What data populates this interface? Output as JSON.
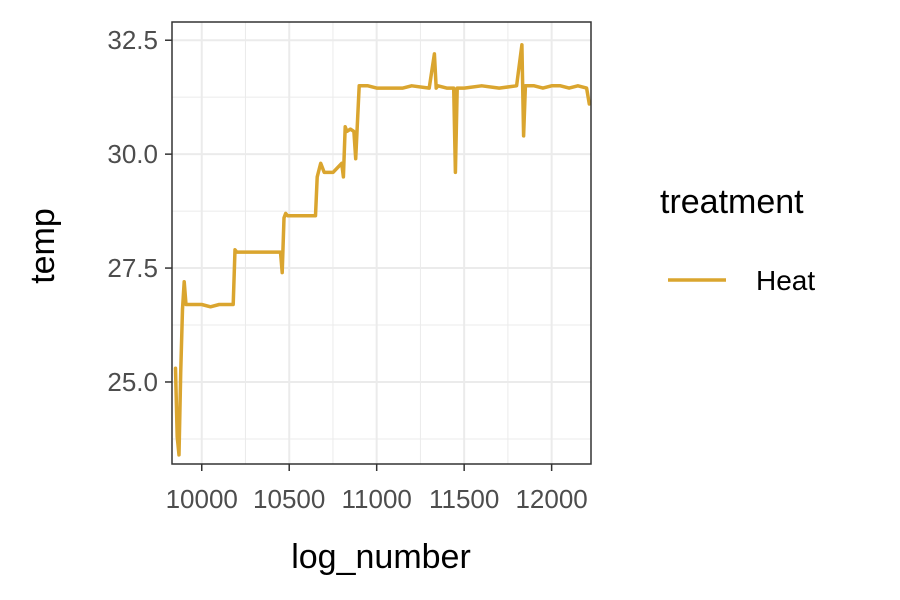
{
  "chart_data": {
    "type": "line",
    "title": "",
    "xlabel": "log_number",
    "ylabel": "temp",
    "xlim": [
      9830,
      12225
    ],
    "ylim": [
      23.2,
      32.9
    ],
    "x_ticks": [
      10000,
      10500,
      11000,
      11500,
      12000
    ],
    "x_tick_labels": [
      "10000",
      "10500",
      "11000",
      "11500",
      "12000"
    ],
    "y_ticks": [
      25.0,
      27.5,
      30.0,
      32.5
    ],
    "y_tick_labels": [
      "25.0",
      "27.5",
      "30.0",
      "32.5"
    ],
    "grid": true,
    "legend": {
      "title": "treatment",
      "position": "right"
    },
    "series": [
      {
        "name": "Heat",
        "color": "#DAA52F",
        "x": [
          9850,
          9855,
          9860,
          9870,
          9880,
          9890,
          9900,
          9910,
          9930,
          9960,
          10000,
          10050,
          10100,
          10150,
          10180,
          10190,
          10200,
          10250,
          10300,
          10350,
          10400,
          10450,
          10460,
          10470,
          10480,
          10490,
          10500,
          10550,
          10600,
          10650,
          10660,
          10680,
          10700,
          10750,
          10800,
          10810,
          10820,
          10830,
          10850,
          10870,
          10880,
          10900,
          10950,
          11000,
          11050,
          11100,
          11150,
          11200,
          11300,
          11330,
          11340,
          11350,
          11400,
          11440,
          11450,
          11460,
          11500,
          11600,
          11700,
          11800,
          11830,
          11840,
          11850,
          11900,
          11950,
          12000,
          12050,
          12100,
          12150,
          12200,
          12215
        ],
        "values": [
          25.3,
          24.5,
          23.8,
          23.4,
          25.2,
          26.6,
          27.2,
          26.7,
          26.7,
          26.7,
          26.7,
          26.65,
          26.7,
          26.7,
          26.7,
          27.9,
          27.85,
          27.85,
          27.85,
          27.85,
          27.85,
          27.85,
          27.4,
          28.6,
          28.7,
          28.65,
          28.65,
          28.65,
          28.65,
          28.65,
          29.5,
          29.8,
          29.6,
          29.6,
          29.8,
          29.5,
          30.6,
          30.5,
          30.55,
          30.5,
          29.9,
          31.5,
          31.5,
          31.45,
          31.45,
          31.45,
          31.45,
          31.5,
          31.45,
          32.2,
          31.45,
          31.5,
          31.45,
          31.45,
          29.6,
          31.45,
          31.45,
          31.5,
          31.45,
          31.5,
          32.4,
          30.4,
          31.5,
          31.5,
          31.45,
          31.5,
          31.5,
          31.45,
          31.5,
          31.45,
          31.1
        ]
      }
    ]
  }
}
